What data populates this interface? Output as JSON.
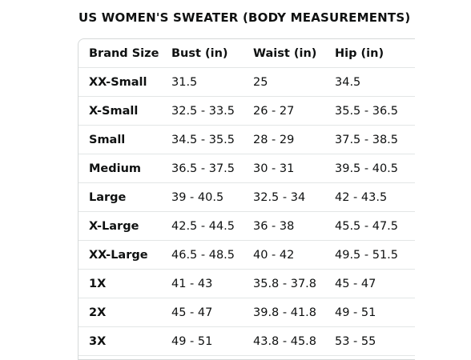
{
  "title": "US WOMEN'S SWEATER (BODY MEASUREMENTS)",
  "headers": [
    "Brand Size",
    "Bust (in)",
    "Waist (in)",
    "Hip (in)"
  ],
  "rows": [
    [
      "XX-Small",
      "31.5",
      "25",
      "34.5"
    ],
    [
      "X-Small",
      "32.5 - 33.5",
      "26 - 27",
      "35.5 - 36.5"
    ],
    [
      "Small",
      "34.5 - 35.5",
      "28 - 29",
      "37.5 - 38.5"
    ],
    [
      "Medium",
      "36.5 - 37.5",
      "30 - 31",
      "39.5 - 40.5"
    ],
    [
      "Large",
      "39 - 40.5",
      "32.5 - 34",
      "42 - 43.5"
    ],
    [
      "X-Large",
      "42.5 - 44.5",
      "36 - 38",
      "45.5 - 47.5"
    ],
    [
      "XX-Large",
      "46.5 - 48.5",
      "40 - 42",
      "49.5 - 51.5"
    ],
    [
      "1X",
      "41 - 43",
      "35.8 - 37.8",
      "45 - 47"
    ],
    [
      "2X",
      "45 - 47",
      "39.8 - 41.8",
      "49 - 51"
    ],
    [
      "3X",
      "49 - 51",
      "43.8 - 45.8",
      "53 - 55"
    ]
  ],
  "colors": {
    "text": "#0f1111",
    "border": "#d5d9d9",
    "row_divider": "#e3e6e6"
  }
}
